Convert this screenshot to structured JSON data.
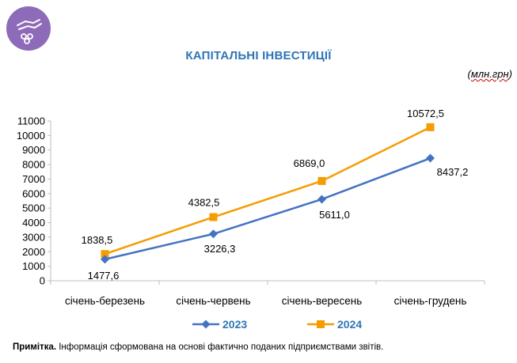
{
  "logo": {
    "icon": "hand-coins-icon",
    "color": "#8e6bb8"
  },
  "title": "КАПІТАЛЬНІ ІНВЕСТИЦІЇ",
  "unit": {
    "open": "(",
    "text": "млн.грн",
    "close": ")"
  },
  "note": {
    "label": "Примітка.",
    "text": " Інформація сформована на основі фактично поданих підприємствами звітів."
  },
  "chart_data": {
    "type": "line",
    "categories": [
      "січень-березень",
      "січень-червень",
      "січень-вересень",
      "січень-грудень"
    ],
    "series": [
      {
        "name": "2023",
        "values": [
          1477.6,
          3226.3,
          5611.0,
          8437.2
        ],
        "labels": [
          "1477,6",
          "3226,3",
          "5611,0",
          "8437,2"
        ],
        "color": "#4472c4",
        "marker": "diamond"
      },
      {
        "name": "2024",
        "values": [
          1838.5,
          4382.5,
          6869.0,
          10572.5
        ],
        "labels": [
          "1838,5",
          "4382,5",
          "6869,0",
          "10572,5"
        ],
        "color": "#f59c00",
        "marker": "square"
      }
    ],
    "ylim": [
      0,
      11000
    ],
    "yticks": [
      0,
      1000,
      2000,
      3000,
      4000,
      5000,
      6000,
      7000,
      8000,
      9000,
      10000,
      11000
    ],
    "grid": false,
    "legend": "bottom"
  }
}
